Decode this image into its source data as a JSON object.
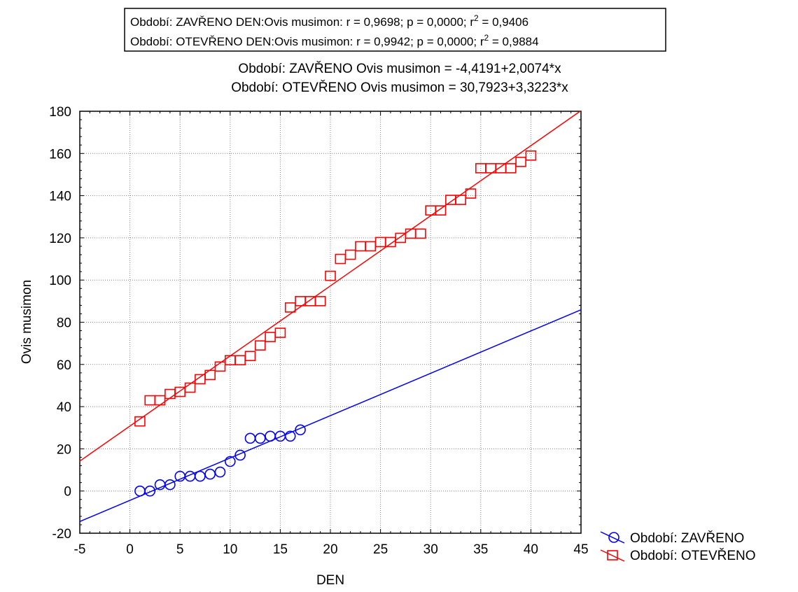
{
  "chart_data": {
    "type": "scatter",
    "stats_box": {
      "lines": [
        {
          "prefix": "Období: ZAVŘENO  DEN:Ovis musimon:   r = 0,9698; p = 0,0000; r",
          "sup": "2",
          "suffix": " = 0,9406"
        },
        {
          "prefix": "Období: OTEVŘENO  DEN:Ovis musimon:   r = 0,9942; p = 0,0000; r",
          "sup": "2",
          "suffix": " = 0,9884"
        }
      ]
    },
    "equations": [
      "Období: ZAVŘENO Ovis musimon = -4,4191+2,0074*x",
      "Období: OTEVŘENO Ovis musimon = 30,7923+3,3223*x"
    ],
    "xlabel": "DEN",
    "ylabel": "Ovis musimon",
    "xlim": [
      -5,
      45
    ],
    "ylim": [
      -20,
      180
    ],
    "xticks": [
      -5,
      0,
      5,
      10,
      15,
      20,
      25,
      30,
      35,
      40,
      45
    ],
    "yticks": [
      -20,
      0,
      20,
      40,
      60,
      80,
      100,
      120,
      140,
      160,
      180
    ],
    "grid": true,
    "legend_position": "bottom-right outside",
    "series": [
      {
        "name": "Období: ZAVŘENO",
        "color": "#0000ff",
        "marker": "circle",
        "regression": {
          "intercept": -4.4191,
          "slope": 2.0074
        },
        "x": [
          1,
          2,
          3,
          4,
          5,
          6,
          7,
          8,
          9,
          10,
          11,
          12,
          13,
          14,
          15,
          16,
          17
        ],
        "y": [
          0,
          0,
          3,
          3,
          7,
          7,
          7,
          8,
          9,
          14,
          17,
          25,
          25,
          26,
          26,
          26,
          29
        ]
      },
      {
        "name": "Období: OTEVŘENO",
        "color": "#ff0000",
        "marker": "square",
        "regression": {
          "intercept": 30.7923,
          "slope": 3.3223
        },
        "x": [
          1,
          2,
          3,
          4,
          5,
          6,
          7,
          8,
          9,
          10,
          11,
          12,
          13,
          14,
          15,
          16,
          17,
          18,
          19,
          20,
          21,
          22,
          23,
          24,
          25,
          26,
          27,
          28,
          29,
          30,
          31,
          32,
          33,
          34,
          35,
          36,
          37,
          38,
          39,
          40
        ],
        "y": [
          33,
          43,
          43,
          46,
          47,
          49,
          53,
          55,
          59,
          62,
          62,
          64,
          69,
          73,
          75,
          87,
          90,
          90,
          90,
          102,
          110,
          112,
          116,
          116,
          118,
          118,
          120,
          122,
          122,
          133,
          133,
          138,
          138,
          141,
          153,
          153,
          153,
          153,
          156,
          159
        ]
      }
    ]
  }
}
